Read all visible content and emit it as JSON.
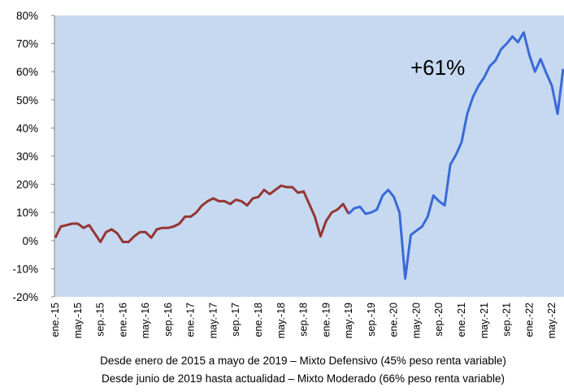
{
  "chart_data": {
    "type": "line",
    "annotation": "+61%",
    "notes": [
      "Desde enero de 2015 a mayo de 2019 – Mixto Defensivo (45% peso renta variable)",
      "Desde junio de 2019 hasta actualidad – Mixto Moderado (66% peso renta variable)"
    ],
    "categories": [
      "ene.-15",
      null,
      null,
      null,
      "may.-15",
      null,
      null,
      null,
      "sep.-15",
      null,
      null,
      null,
      "ene.-16",
      null,
      null,
      null,
      "may.-16",
      null,
      null,
      null,
      "sep.-16",
      null,
      null,
      null,
      "ene.-17",
      null,
      null,
      null,
      "may.-17",
      null,
      null,
      null,
      "sep.-17",
      null,
      null,
      null,
      "ene.-18",
      null,
      null,
      null,
      "may.-18",
      null,
      null,
      null,
      "sep.-18",
      null,
      null,
      null,
      "ene.-19",
      null,
      null,
      null,
      "may.-19",
      null,
      null,
      null,
      "sep.-19",
      null,
      null,
      null,
      "ene.-20",
      null,
      null,
      null,
      "may.-20",
      null,
      null,
      null,
      "sep.-20",
      null,
      null,
      null,
      "ene.-21",
      null,
      null,
      null,
      "may.-21",
      null,
      null,
      null,
      "sep.-21",
      null,
      null,
      null,
      "ene.-22",
      null,
      null,
      null,
      "may.-22",
      null,
      null
    ],
    "series": [
      {
        "color": "#943634",
        "values": [
          1,
          5,
          5.5,
          6,
          6,
          4.5,
          5.5,
          2.5,
          -0.5,
          3,
          4,
          2.5,
          -0.5,
          -0.5,
          1.5,
          3,
          3,
          1,
          4,
          4.5,
          4.5,
          5,
          6,
          8.5,
          8.5,
          10,
          12.5,
          14,
          15,
          14,
          14,
          13,
          14.5,
          14,
          12.5,
          15,
          15.5,
          18,
          16.5,
          18,
          19.5,
          19,
          19,
          17,
          17.5,
          13,
          8.5,
          1.5,
          7,
          10,
          11,
          13,
          9.5,
          null,
          null,
          null,
          null,
          null,
          null,
          null,
          null,
          null,
          null,
          null,
          null,
          null,
          null,
          null,
          null,
          null,
          null,
          null,
          null,
          null,
          null,
          null,
          null,
          null,
          null,
          null,
          null,
          null,
          null,
          null,
          null,
          null,
          null,
          null,
          null,
          null,
          null
        ]
      },
      {
        "color": "#3a6ad6",
        "values": [
          null,
          null,
          null,
          null,
          null,
          null,
          null,
          null,
          null,
          null,
          null,
          null,
          null,
          null,
          null,
          null,
          null,
          null,
          null,
          null,
          null,
          null,
          null,
          null,
          null,
          null,
          null,
          null,
          null,
          null,
          null,
          null,
          null,
          null,
          null,
          null,
          null,
          null,
          null,
          null,
          null,
          null,
          null,
          null,
          null,
          null,
          null,
          null,
          null,
          null,
          null,
          null,
          9.5,
          11.5,
          12,
          9.5,
          10,
          11,
          16,
          18,
          15.5,
          10,
          -13.5,
          2,
          3.5,
          5,
          8.5,
          16,
          14,
          12.5,
          27,
          30.5,
          35,
          45,
          51,
          55,
          58,
          62,
          64,
          68,
          70,
          72.5,
          70.5,
          74,
          66,
          60,
          64.5,
          59.5,
          55,
          45,
          61
        ]
      }
    ],
    "ylim": [
      -20,
      80
    ],
    "yticks": [
      {
        "value": -20,
        "label": "-20%"
      },
      {
        "value": -10,
        "label": "-10%"
      },
      {
        "value": 0,
        "label": "0%"
      },
      {
        "value": 10,
        "label": "10%"
      },
      {
        "value": 20,
        "label": "20%"
      },
      {
        "value": 30,
        "label": "30%"
      },
      {
        "value": 40,
        "label": "40%"
      },
      {
        "value": 50,
        "label": "50%"
      },
      {
        "value": 60,
        "label": "60%"
      },
      {
        "value": 70,
        "label": "70%"
      },
      {
        "value": 80,
        "label": "80%"
      }
    ],
    "background": "#c6d9f1"
  }
}
